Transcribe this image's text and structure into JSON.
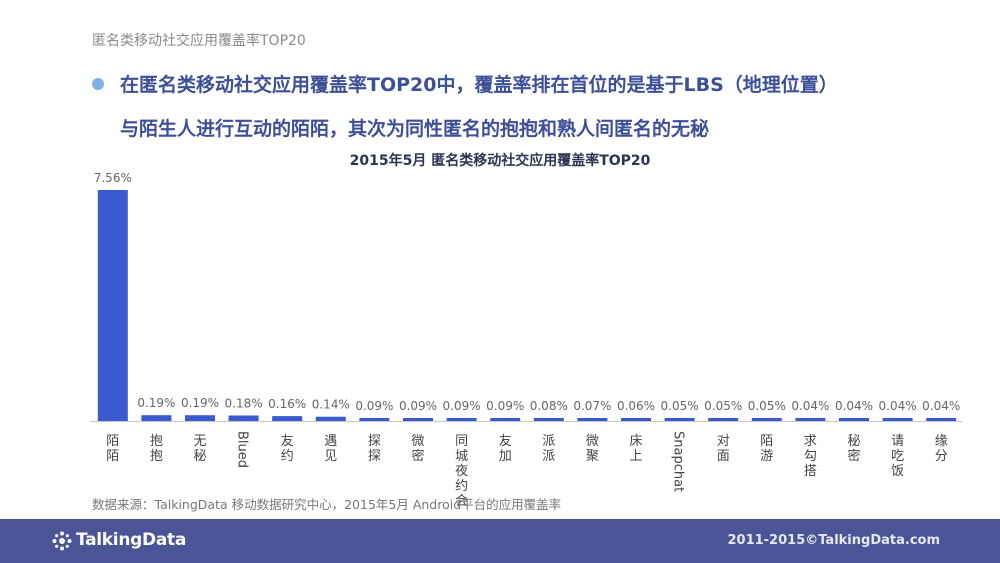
{
  "header": {
    "breadcrumb": "匿名类移动社交应用覆盖率TOP20",
    "headline_line1": "在匿名类移动社交应用覆盖率TOP20中，覆盖率排在首位的是基于LBS（地理位置）",
    "headline_line2": "与陌生人进行互动的陌陌，其次为同性匿名的抱抱和熟人间匿名的无秘"
  },
  "chart_data": {
    "type": "bar",
    "title": "2015年5月 匿名类移动社交应用覆盖率TOP20",
    "xlabel": "",
    "ylabel": "",
    "categories": [
      "陌陌",
      "抱抱",
      "无秘",
      "Blued",
      "友约",
      "遇见",
      "探探",
      "微密",
      "同城夜约会",
      "友加",
      "派派",
      "微聚",
      "床上",
      "Snapchat",
      "对面",
      "陌游",
      "求勾搭",
      "秘密",
      "请吃饭",
      "缘分"
    ],
    "values": [
      7.56,
      0.19,
      0.19,
      0.18,
      0.16,
      0.14,
      0.09,
      0.09,
      0.09,
      0.09,
      0.08,
      0.07,
      0.06,
      0.05,
      0.05,
      0.05,
      0.04,
      0.04,
      0.04,
      0.04
    ],
    "value_labels": [
      "7.56%",
      "0.19%",
      "0.19%",
      "0.18%",
      "0.16%",
      "0.14%",
      "0.09%",
      "0.09%",
      "0.09%",
      "0.09%",
      "0.08%",
      "0.07%",
      "0.06%",
      "0.05%",
      "0.05%",
      "0.05%",
      "0.04%",
      "0.04%",
      "0.04%",
      "0.04%"
    ],
    "unit": "%",
    "ylim": [
      0,
      7.56
    ],
    "grid": false,
    "legend": "none",
    "bar_color": "#3a5ad0"
  },
  "source": "数据来源：TalkingData 移动数据研究中心，2015年5月 Android平台的应用覆盖率",
  "footer": {
    "logo_text": "TalkingData",
    "copyright": "2011-2015©TalkingData.com"
  }
}
